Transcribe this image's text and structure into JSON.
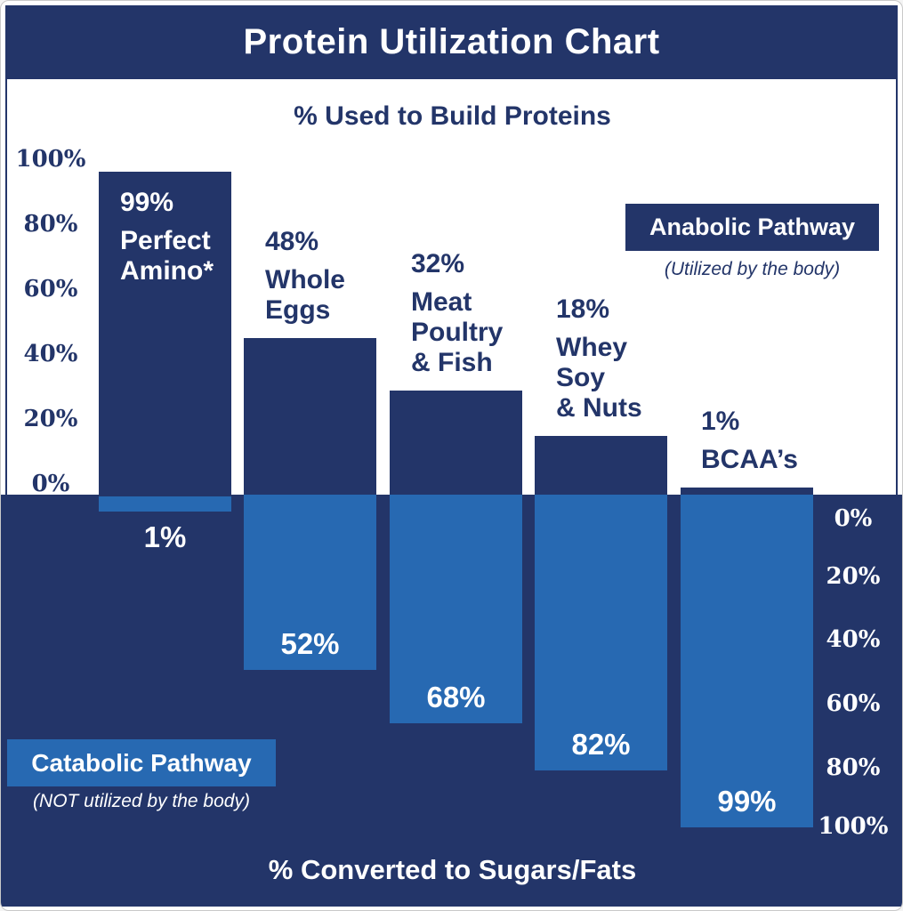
{
  "header": {
    "title": "Protein Utilization Chart"
  },
  "chart_data": {
    "type": "bar",
    "title": "Protein Utilization Chart",
    "orientation": "diverging-vertical",
    "categories": [
      "Perfect Amino*",
      "Whole Eggs",
      "Meat Poultry & Fish",
      "Whey Soy & Nuts",
      "BCAA's"
    ],
    "series": [
      {
        "name": "% Used to Build Proteins (Anabolic Pathway)",
        "values": [
          99,
          48,
          32,
          18,
          1
        ]
      },
      {
        "name": "% Converted to Sugars/Fats (Catabolic Pathway)",
        "values": [
          1,
          52,
          68,
          82,
          99
        ]
      }
    ],
    "upper": {
      "axis_title": "% Used to Build Proteins",
      "ticks": [
        "100%",
        "80%",
        "60%",
        "40%",
        "20%",
        "0%"
      ],
      "axis_range": [
        0,
        100
      ],
      "bars": [
        {
          "value": 99,
          "pct_label": "99%",
          "name_lines": [
            "Perfect",
            "Amino*"
          ]
        },
        {
          "value": 48,
          "pct_label": "48%",
          "name_lines": [
            "Whole",
            "Eggs"
          ]
        },
        {
          "value": 32,
          "pct_label": "32%",
          "name_lines": [
            "Meat",
            "Poultry",
            "& Fish"
          ]
        },
        {
          "value": 18,
          "pct_label": "18%",
          "name_lines": [
            "Whey",
            "Soy",
            "& Nuts"
          ]
        },
        {
          "value": 1,
          "pct_label": "1%",
          "name_lines": [
            "BCAA’s"
          ]
        }
      ],
      "legend": {
        "label": "Anabolic Pathway",
        "caption": "(Utilized by the body)"
      }
    },
    "lower": {
      "axis_title": "% Converted to Sugars/Fats",
      "ticks": [
        "0%",
        "20%",
        "40%",
        "60%",
        "80%",
        "100%"
      ],
      "axis_range": [
        0,
        100
      ],
      "values": [
        1,
        52,
        68,
        82,
        99
      ],
      "labels": [
        "1%",
        "52%",
        "68%",
        "82%",
        "99%"
      ],
      "legend": {
        "label": "Catabolic Pathway",
        "caption": "(NOT utilized by the body)"
      }
    },
    "legend_position": "inside-plot",
    "grid": false,
    "colors": {
      "navy": "#233569",
      "blue": "#2769b2",
      "white": "#ffffff"
    }
  }
}
